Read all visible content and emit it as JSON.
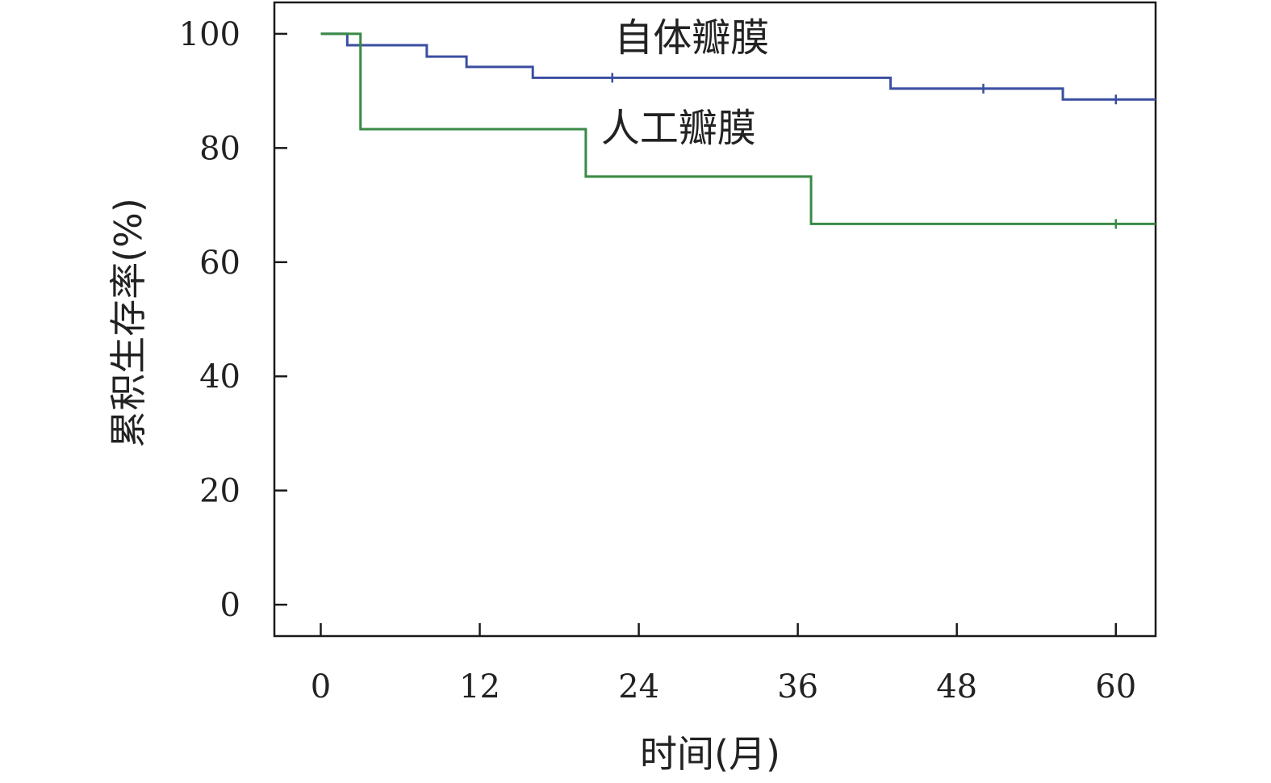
{
  "chart_data": {
    "type": "line",
    "step": true,
    "xlabel": "时间(月)",
    "ylabel": "累积生存率(%)",
    "xlim": [
      -3.5,
      63
    ],
    "ylim": [
      -5.5,
      105.5
    ],
    "xticks": [
      0,
      12,
      24,
      36,
      48,
      60
    ],
    "yticks": [
      0,
      20,
      40,
      60,
      80,
      100
    ],
    "grid": false,
    "series": [
      {
        "name": "自体瓣膜",
        "color": "#3a4fa0",
        "x": [
          0,
          2,
          8,
          11,
          16,
          43,
          56,
          63
        ],
        "y": [
          100,
          98,
          96,
          94.2,
          92.3,
          90.4,
          88.5,
          88.5
        ],
        "censored": [
          [
            22,
            92.3
          ],
          [
            50,
            90.4
          ],
          [
            60,
            88.5
          ]
        ]
      },
      {
        "name": "人工瓣膜",
        "color": "#3a8a45",
        "x": [
          0,
          3,
          20,
          37,
          63
        ],
        "y": [
          100,
          83.3,
          75,
          66.7,
          66.7
        ],
        "censored": [
          [
            60,
            66.7
          ]
        ]
      }
    ]
  }
}
